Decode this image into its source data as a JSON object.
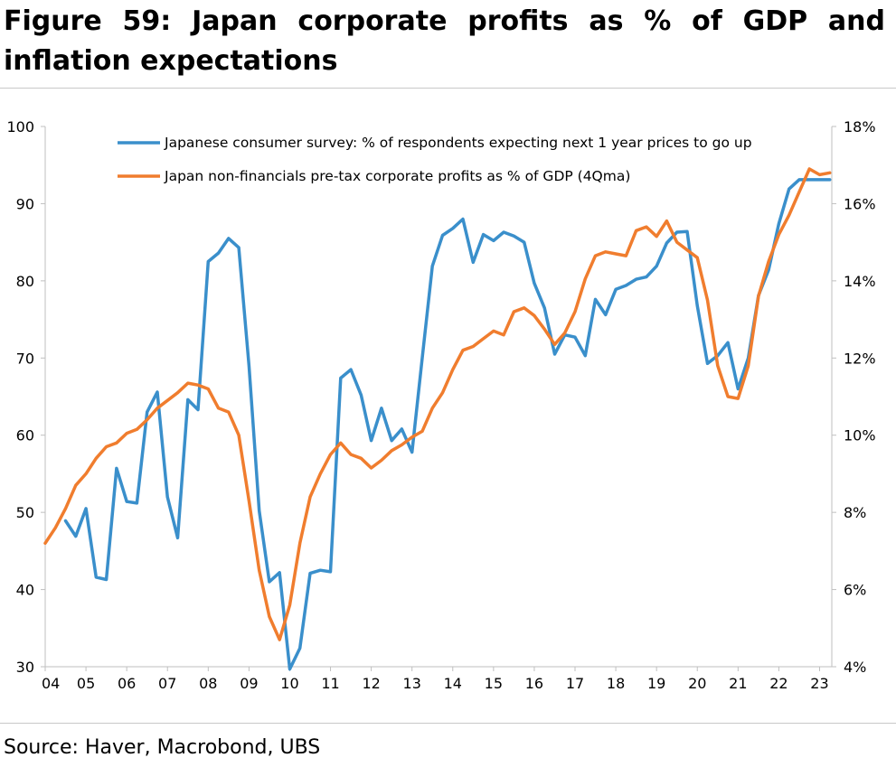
{
  "title": "Figure 59: Japan corporate profits as % of GDP and inflation expectations",
  "source": "Source: Haver, Macrobond, UBS",
  "chart_data": {
    "type": "line",
    "x_ticks": [
      "04",
      "05",
      "06",
      "07",
      "08",
      "09",
      "10",
      "11",
      "12",
      "13",
      "14",
      "15",
      "16",
      "17",
      "18",
      "19",
      "20",
      "21",
      "22",
      "23"
    ],
    "y_left": {
      "ylim": [
        30,
        100
      ],
      "ticks": [
        "30",
        "40",
        "50",
        "60",
        "70",
        "80",
        "90",
        "100"
      ]
    },
    "y_right": {
      "ylim": [
        4,
        18
      ],
      "ticks": [
        "4%",
        "6%",
        "8%",
        "10%",
        "12%",
        "14%",
        "16%",
        "18%"
      ]
    },
    "grid": false,
    "legend_position": "top",
    "series": [
      {
        "name": "Japanese consumer survey: % of respondents expecting next 1 year prices to go up",
        "axis": "left",
        "color": "#3a8fcb",
        "x": [
          2004.5,
          2004.75,
          2005.0,
          2005.25,
          2005.5,
          2005.75,
          2006.0,
          2006.25,
          2006.5,
          2006.75,
          2007.0,
          2007.25,
          2007.5,
          2007.75,
          2008.0,
          2008.25,
          2008.5,
          2008.75,
          2009.0,
          2009.25,
          2009.5,
          2009.75,
          2010.0,
          2010.25,
          2010.5,
          2010.75,
          2011.0,
          2011.25,
          2011.5,
          2011.75,
          2012.0,
          2012.25,
          2012.5,
          2012.75,
          2013.0,
          2013.25,
          2013.5,
          2013.75,
          2014.0,
          2014.25,
          2014.5,
          2014.75,
          2015.0,
          2015.25,
          2015.5,
          2015.75,
          2016.0,
          2016.25,
          2016.5,
          2016.75,
          2017.0,
          2017.25,
          2017.5,
          2017.75,
          2018.0,
          2018.25,
          2018.5,
          2018.75,
          2019.0,
          2019.25,
          2019.5,
          2019.75,
          2020.0,
          2020.25,
          2020.5,
          2020.75,
          2021.0,
          2021.25,
          2021.5,
          2021.75,
          2022.0,
          2022.25,
          2022.5,
          2022.75,
          2023.0,
          2023.25
        ],
        "values": [
          48.9,
          46.9,
          50.5,
          41.6,
          41.3,
          55.7,
          51.4,
          51.2,
          63.0,
          65.6,
          52.0,
          46.7,
          64.6,
          63.3,
          82.5,
          83.6,
          85.5,
          84.3,
          69.0,
          50.2,
          41.0,
          42.2,
          29.7,
          32.4,
          42.1,
          42.5,
          42.3,
          67.4,
          68.5,
          65.2,
          59.3,
          63.5,
          59.3,
          60.8,
          57.8,
          70.0,
          81.9,
          85.9,
          86.8,
          88.0,
          82.4,
          86.0,
          85.2,
          86.3,
          85.8,
          85.0,
          79.7,
          76.5,
          70.5,
          73.0,
          72.7,
          70.3,
          77.6,
          75.6,
          78.9,
          79.4,
          80.2,
          80.5,
          81.9,
          84.9,
          86.3,
          86.4,
          76.8,
          69.3,
          70.3,
          72.0,
          66.0,
          70.0,
          78.1,
          81.4,
          87.4,
          91.9,
          93.1,
          93.1,
          93.1,
          93.1
        ]
      },
      {
        "name": "Japan non-financials pre-tax corporate profits as % of GDP (4Qma)",
        "axis": "right",
        "color": "#f07d2e",
        "x": [
          2004.0,
          2004.25,
          2004.5,
          2004.75,
          2005.0,
          2005.25,
          2005.5,
          2005.75,
          2006.0,
          2006.25,
          2006.5,
          2006.75,
          2007.0,
          2007.25,
          2007.5,
          2007.75,
          2008.0,
          2008.25,
          2008.5,
          2008.75,
          2009.0,
          2009.25,
          2009.5,
          2009.75,
          2010.0,
          2010.25,
          2010.5,
          2010.75,
          2011.0,
          2011.25,
          2011.5,
          2011.75,
          2012.0,
          2012.25,
          2012.5,
          2012.75,
          2013.0,
          2013.25,
          2013.5,
          2013.75,
          2014.0,
          2014.25,
          2014.5,
          2014.75,
          2015.0,
          2015.25,
          2015.5,
          2015.75,
          2016.0,
          2016.25,
          2016.5,
          2016.75,
          2017.0,
          2017.25,
          2017.5,
          2017.75,
          2018.0,
          2018.25,
          2018.5,
          2018.75,
          2019.0,
          2019.25,
          2019.5,
          2019.75,
          2020.0,
          2020.25,
          2020.5,
          2020.75,
          2021.0,
          2021.25,
          2021.5,
          2021.75,
          2022.0,
          2022.25,
          2022.5,
          2022.75,
          2023.0,
          2023.25
        ],
        "values": [
          7.2,
          7.6,
          8.1,
          8.7,
          9.0,
          9.4,
          9.7,
          9.8,
          10.05,
          10.15,
          10.4,
          10.7,
          10.9,
          11.1,
          11.35,
          11.3,
          11.2,
          10.7,
          10.6,
          10.0,
          8.3,
          6.5,
          5.3,
          4.7,
          5.6,
          7.2,
          8.4,
          9.0,
          9.5,
          9.8,
          9.5,
          9.4,
          9.15,
          9.35,
          9.6,
          9.75,
          9.95,
          10.1,
          10.7,
          11.1,
          11.7,
          12.2,
          12.3,
          12.5,
          12.7,
          12.6,
          13.2,
          13.3,
          13.1,
          12.75,
          12.35,
          12.65,
          13.2,
          14.05,
          14.65,
          14.75,
          14.7,
          14.65,
          15.3,
          15.4,
          15.15,
          15.55,
          15.0,
          14.8,
          14.6,
          13.5,
          11.8,
          11.0,
          10.95,
          11.8,
          13.6,
          14.5,
          15.2,
          15.7,
          16.3,
          16.9,
          16.75,
          16.8
        ]
      }
    ]
  }
}
